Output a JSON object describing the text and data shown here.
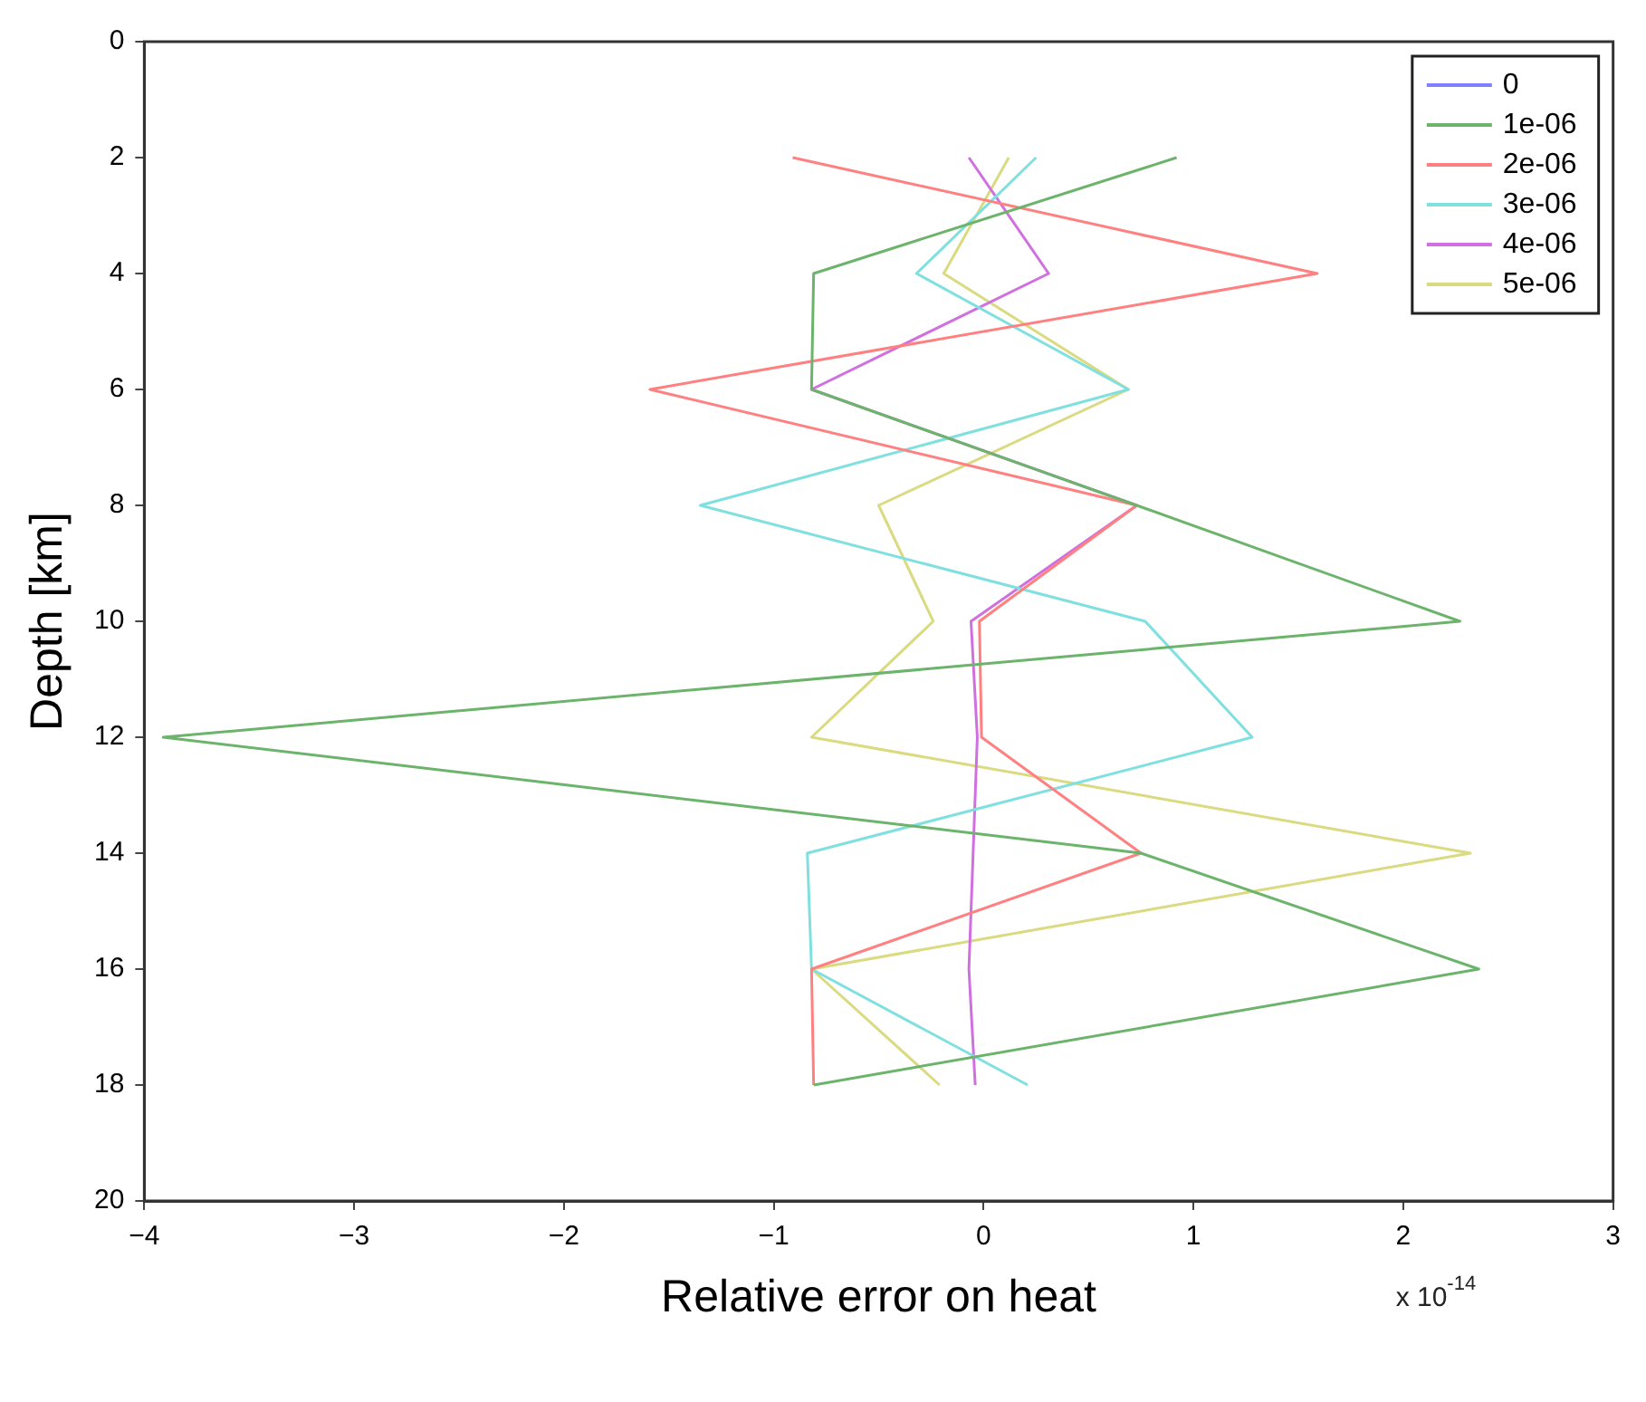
{
  "chart_data": {
    "type": "line",
    "orientation": "horizontal",
    "xlabel": "Relative error on heat",
    "ylabel": "Depth [km]",
    "annotations": [
      "x 10$^{-14}$"
    ],
    "x": [
      2,
      4,
      6,
      8,
      10,
      12,
      14,
      16,
      18
    ],
    "xlim": [
      -4,
      3
    ],
    "xticks": [
      -4,
      -3,
      -2,
      -1,
      0,
      1,
      2,
      3
    ],
    "ylim": [
      20,
      0
    ],
    "yticks": [
      0,
      2,
      4,
      6,
      8,
      10,
      12,
      14,
      16,
      18,
      20
    ],
    "legend": "top right",
    "marker": "none",
    "line_style": "solid",
    "series": [
      {
        "name": "0",
        "color": "#8080ff",
        "values": [
          null,
          null,
          null,
          null,
          null,
          null,
          null,
          null,
          null
        ]
      },
      {
        "name": "1e-06",
        "color": "#6cb36c",
        "values": [
          0.92,
          -0.81,
          -0.82,
          0.73,
          2.27,
          -3.91,
          0.75,
          2.36,
          -0.81
        ]
      },
      {
        "name": "2e-06",
        "color": "#ff8080",
        "values": [
          -0.91,
          1.59,
          -1.59,
          0.73,
          -0.02,
          -0.01,
          0.75,
          -0.82,
          -0.81
        ]
      },
      {
        "name": "3e-06",
        "color": "#80e0e0",
        "values": [
          0.25,
          -0.32,
          0.69,
          -1.35,
          0.77,
          1.28,
          -0.84,
          -0.82,
          0.21
        ]
      },
      {
        "name": "4e-06",
        "color": "#d070e0",
        "values": [
          -0.07,
          0.31,
          -0.82,
          0.73,
          -0.06,
          -0.03,
          -0.05,
          -0.07,
          -0.04
        ]
      },
      {
        "name": "5e-06",
        "color": "#dada80",
        "values": [
          0.12,
          -0.19,
          0.69,
          -0.5,
          -0.24,
          -0.82,
          2.32,
          -0.82,
          -0.21
        ]
      }
    ]
  }
}
